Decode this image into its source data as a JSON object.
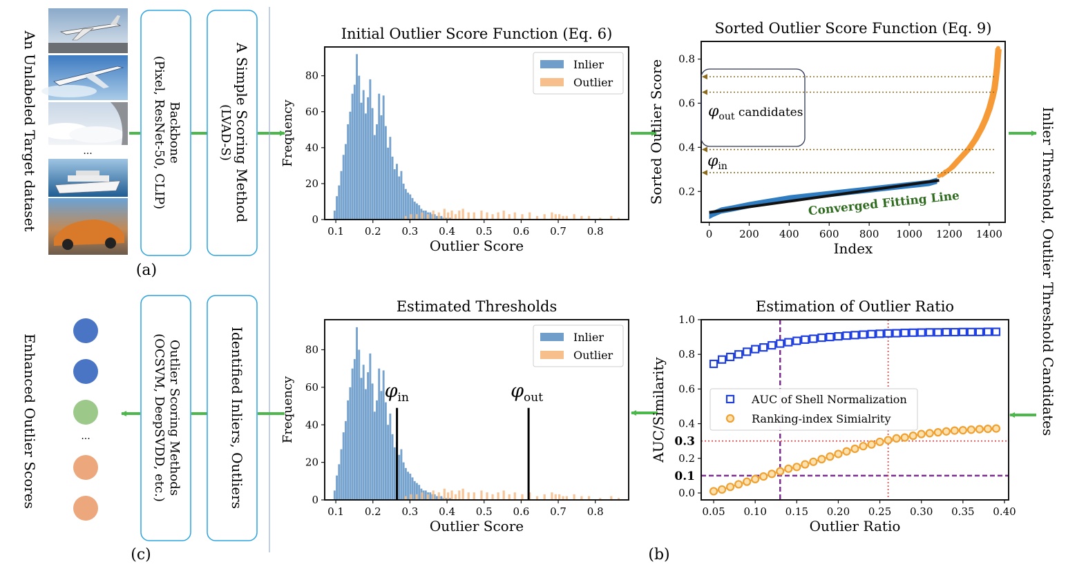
{
  "panel_labels": {
    "a": "(a)",
    "b": "(b)",
    "c": "(c)"
  },
  "left_column": {
    "dataset_label": "An Unlabeled Target dataset",
    "ellipsis": "...",
    "thumbnails": [
      "airplane-takeoff-photo",
      "airliner-in-sky-photo",
      "clouds-from-window-photo",
      "cruise-ship-photo",
      "sports-car-photo"
    ],
    "backbone_title": "Backbone",
    "backbone_detail": "(Pixel, ResNet-50, CLIP)",
    "scoring_title": "A Simple Scoring Method",
    "scoring_detail": "(LVAD-S)",
    "enhanced_label": "Enhanced Outlier Scores",
    "dots": [
      {
        "color": "#4a74c4"
      },
      {
        "color": "#4a74c4"
      },
      {
        "color": "#9cc98a"
      },
      {
        "color": "#eca77c"
      },
      {
        "color": "#eca77c"
      }
    ],
    "dots_ellipsis": "...",
    "outlier_methods_title": "Outlier Scoring Methods",
    "outlier_methods_detail": "(OCSVM, DeepSVDD, etc.)",
    "identified_label": "Identified Inliers, Outliers"
  },
  "right_label": "Inlier Threshold, Outlier Threshold Candidates",
  "colors": {
    "inlier": "#6f9ecb",
    "outlier": "#f6bf8c",
    "arrow": "#4cb84c",
    "box_border": "#29a3e0",
    "divider": "#9aaed8",
    "sorted_blue": "#2f7cc1",
    "sorted_orange": "#f59a36",
    "fit_line": "#111111",
    "dotted_arrow": "#8a6a1e",
    "auc_blue": "#1f3fe0",
    "rank_orange": "#f0a030",
    "red_dotted": "#e23a3a",
    "purple_dashed": "#7b2d8e",
    "fitting_text": "#2e6b1e"
  },
  "chart_data": [
    {
      "id": "hist-initial",
      "type": "bar",
      "title": "Initial Outlier Score Function (Eq. 6)",
      "xlabel": "Outlier Score",
      "ylabel": "Frequency",
      "xlim": [
        0.07,
        0.89
      ],
      "ylim": [
        0,
        96
      ],
      "xticks": [
        0.1,
        0.2,
        0.3,
        0.4,
        0.5,
        0.6,
        0.7,
        0.8
      ],
      "yticks": [
        0,
        20,
        40,
        60,
        80
      ],
      "legend": {
        "position": "top-right",
        "entries": [
          "Inlier",
          "Outlier"
        ]
      },
      "bin_width": 0.006,
      "series": [
        {
          "name": "Inlier",
          "x_start": 0.094,
          "values": [
            5,
            13,
            19,
            27,
            36,
            42,
            53,
            60,
            70,
            75,
            92,
            80,
            65,
            72,
            59,
            68,
            78,
            62,
            47,
            53,
            70,
            58,
            69,
            52,
            40,
            46,
            35,
            28,
            31,
            24,
            27,
            20,
            17,
            15,
            14,
            12,
            10,
            9,
            8,
            6,
            5,
            5,
            4,
            4,
            3,
            3,
            2,
            2,
            2,
            1,
            1,
            1,
            1
          ]
        },
        {
          "name": "Outlier",
          "x": [
            0.285,
            0.3,
            0.315,
            0.33,
            0.345,
            0.36,
            0.375,
            0.39,
            0.4,
            0.41,
            0.42,
            0.43,
            0.44,
            0.455,
            0.47,
            0.49,
            0.505,
            0.52,
            0.535,
            0.55,
            0.565,
            0.58,
            0.6,
            0.62,
            0.64,
            0.66,
            0.68,
            0.69,
            0.7,
            0.71,
            0.72,
            0.74,
            0.76,
            0.78,
            0.81,
            0.84,
            0.86
          ],
          "values": [
            2,
            3,
            3,
            4,
            3,
            5,
            4,
            6,
            4,
            5,
            3,
            5,
            6,
            4,
            4,
            5,
            4,
            3,
            4,
            5,
            3,
            4,
            3,
            4,
            2,
            3,
            4,
            3,
            3,
            2,
            2,
            3,
            2,
            2,
            1,
            2,
            1
          ]
        }
      ]
    },
    {
      "id": "sorted-scores",
      "type": "scatter",
      "title": "Sorted Outlier Score Function (Eq. 9)",
      "xlabel": "Index",
      "ylabel": "Sorted Outlier Score",
      "xlim": [
        -40,
        1480
      ],
      "ylim": [
        0.06,
        0.88
      ],
      "xticks": [
        0,
        200,
        400,
        600,
        800,
        1000,
        1200,
        1400
      ],
      "yticks": [
        0.2,
        0.4,
        0.6,
        0.8
      ],
      "inlier_points": {
        "name": "Inlier",
        "x": [
          0,
          20,
          60,
          120,
          200,
          300,
          400,
          500,
          600,
          700,
          800,
          900,
          1000,
          1050,
          1100,
          1140
        ],
        "y": [
          0.09,
          0.1,
          0.115,
          0.125,
          0.14,
          0.155,
          0.17,
          0.18,
          0.19,
          0.2,
          0.21,
          0.22,
          0.23,
          0.235,
          0.24,
          0.25
        ]
      },
      "outlier_points": {
        "name": "Outlier",
        "x": [
          1150,
          1180,
          1210,
          1240,
          1270,
          1300,
          1330,
          1360,
          1380,
          1400,
          1415,
          1425,
          1432,
          1438,
          1442,
          1445
        ],
        "y": [
          0.27,
          0.29,
          0.31,
          0.34,
          0.37,
          0.4,
          0.44,
          0.49,
          0.53,
          0.58,
          0.63,
          0.67,
          0.72,
          0.77,
          0.82,
          0.85
        ]
      },
      "fit_line": {
        "label": "Converged Fitting Line",
        "x": [
          0,
          1150
        ],
        "y": [
          0.105,
          0.25
        ]
      },
      "candidate_lines_y": [
        0.72,
        0.65,
        0.39,
        0.285
      ],
      "candidates_label_phi": "φ",
      "candidates_label_sub": "out",
      "candidates_label_text": "candidates",
      "phi_in_label": "φ",
      "phi_in_sub": "in"
    },
    {
      "id": "hist-thresholds",
      "type": "bar",
      "title": "Estimated Thresholds",
      "xlabel": "Outlier Score",
      "ylabel": "Frequency",
      "xlim": [
        0.07,
        0.89
      ],
      "ylim": [
        0,
        96
      ],
      "xticks": [
        0.1,
        0.2,
        0.3,
        0.4,
        0.5,
        0.6,
        0.7,
        0.8
      ],
      "yticks": [
        0,
        20,
        40,
        60,
        80
      ],
      "legend": {
        "position": "top-right",
        "entries": [
          "Inlier",
          "Outlier"
        ]
      },
      "thresholds": [
        {
          "phi": "φ",
          "sub": "in",
          "x": 0.265,
          "height": 49
        },
        {
          "phi": "φ",
          "sub": "out",
          "x": 0.62,
          "height": 49
        }
      ],
      "same_data_as": "hist-initial"
    },
    {
      "id": "outlier-ratio",
      "type": "scatter",
      "title": "Estimation of Outlier Ratio",
      "xlabel": "Outlier Ratio",
      "ylabel": "AUC/Similarity",
      "xlim": [
        0.035,
        0.405
      ],
      "ylim": [
        -0.04,
        1.0
      ],
      "xticks": [
        0.05,
        0.1,
        0.15,
        0.2,
        0.25,
        0.3,
        0.35,
        0.4
      ],
      "xtick_labels": [
        "0.05",
        "0.10",
        "0.15",
        "0.20",
        "0.25",
        "0.30",
        "0.35",
        "0.40"
      ],
      "yticks": [
        0.0,
        0.2,
        0.4,
        0.6,
        0.8,
        1.0
      ],
      "ytick_labels": [
        "0.0",
        "0.2",
        "0.4",
        "0.6",
        "0.8",
        "1.0"
      ],
      "extra_yticks": [
        "0.1",
        "0.3"
      ],
      "legend": {
        "position": "center-left",
        "entries": [
          "AUC of Shell Normalization",
          "Ranking-index Simialrity"
        ]
      },
      "series": [
        {
          "name": "AUC of Shell Normalization",
          "x": [
            0.05,
            0.06,
            0.07,
            0.08,
            0.09,
            0.1,
            0.11,
            0.12,
            0.13,
            0.14,
            0.15,
            0.16,
            0.17,
            0.18,
            0.19,
            0.2,
            0.21,
            0.22,
            0.23,
            0.24,
            0.25,
            0.26,
            0.27,
            0.28,
            0.29,
            0.3,
            0.31,
            0.32,
            0.33,
            0.34,
            0.35,
            0.36,
            0.37,
            0.38,
            0.39
          ],
          "values": [
            0.745,
            0.77,
            0.785,
            0.8,
            0.815,
            0.83,
            0.84,
            0.852,
            0.862,
            0.87,
            0.878,
            0.885,
            0.89,
            0.896,
            0.9,
            0.904,
            0.908,
            0.911,
            0.914,
            0.917,
            0.919,
            0.921,
            0.922,
            0.924,
            0.925,
            0.926,
            0.927,
            0.927,
            0.928,
            0.928,
            0.929,
            0.929,
            0.929,
            0.93,
            0.93
          ]
        },
        {
          "name": "Ranking-index Simialrity",
          "x": [
            0.05,
            0.06,
            0.07,
            0.08,
            0.09,
            0.1,
            0.11,
            0.12,
            0.13,
            0.14,
            0.15,
            0.16,
            0.17,
            0.18,
            0.19,
            0.2,
            0.21,
            0.22,
            0.23,
            0.24,
            0.25,
            0.26,
            0.27,
            0.28,
            0.29,
            0.3,
            0.31,
            0.32,
            0.33,
            0.34,
            0.35,
            0.36,
            0.37,
            0.38,
            0.39
          ],
          "values": [
            0.01,
            0.02,
            0.035,
            0.05,
            0.065,
            0.08,
            0.095,
            0.11,
            0.125,
            0.14,
            0.15,
            0.165,
            0.18,
            0.195,
            0.21,
            0.225,
            0.24,
            0.255,
            0.27,
            0.28,
            0.295,
            0.305,
            0.315,
            0.32,
            0.33,
            0.34,
            0.345,
            0.35,
            0.355,
            0.36,
            0.362,
            0.365,
            0.368,
            0.37,
            0.372
          ]
        }
      ],
      "purple_lines": {
        "x": 0.13,
        "y": 0.1
      },
      "red_lines": {
        "x": 0.26,
        "y": 0.3
      }
    }
  ]
}
